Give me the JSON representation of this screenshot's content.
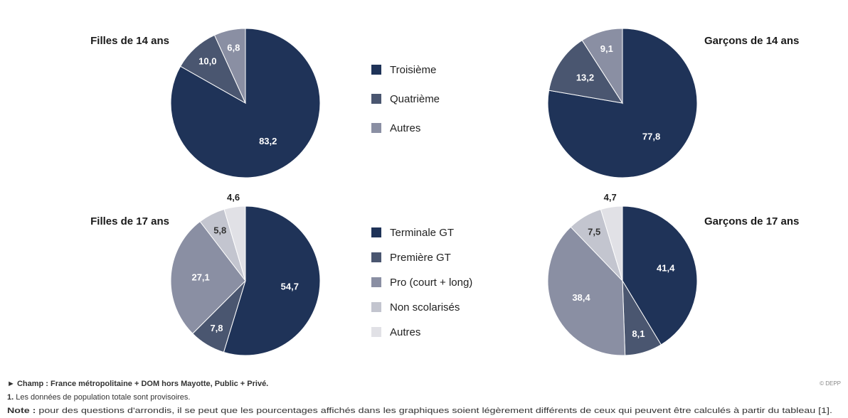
{
  "chart_data": [
    {
      "type": "pie",
      "categories": [
        "Troisième",
        "Quatrième",
        "Autres"
      ],
      "colors": [
        "#1f3358",
        "#4a5670",
        "#8a8fa3"
      ],
      "series": [
        {
          "name": "Filles de 14 ans",
          "values": [
            83.2,
            10.0,
            6.8
          ],
          "value_labels": [
            "83,2",
            "10,0",
            "6,8"
          ]
        },
        {
          "name": "Garçons de 14 ans",
          "values": [
            77.8,
            13.2,
            9.1
          ],
          "value_labels": [
            "77,8",
            "13,2",
            "9,1"
          ]
        }
      ]
    },
    {
      "type": "pie",
      "categories": [
        "Terminale GT",
        "Première GT",
        "Pro (court + long)",
        "Non scolarisés",
        "Autres"
      ],
      "colors": [
        "#1f3358",
        "#4a5670",
        "#8a8fa3",
        "#c3c5cf",
        "#e1e1e6"
      ],
      "series": [
        {
          "name": "Filles de 17 ans",
          "values": [
            54.7,
            7.8,
            27.1,
            5.8,
            4.6
          ],
          "value_labels": [
            "54,7",
            "7,8",
            "27,1",
            "5,8",
            "4,6"
          ]
        },
        {
          "name": "Garçons de 17 ans",
          "values": [
            41.4,
            8.1,
            38.4,
            7.5,
            4.7
          ],
          "value_labels": [
            "41,4",
            "8,1",
            "38,4",
            "7,5",
            "4,7"
          ]
        }
      ]
    }
  ],
  "notes": {
    "champ": "► Champ : France métropolitaine + DOM hors Mayotte, Public + Privé.",
    "footnote_number": "1.",
    "footnote": "Les données de population totale sont provisoires.",
    "note_label": "Note :",
    "note": "pour des questions d'arrondis, il se peut que les pourcentages affichés dans les graphiques soient légèrement différents de ceux qui peuvent être calculés à partir du tableau [1].",
    "credit": "© DEPP"
  }
}
